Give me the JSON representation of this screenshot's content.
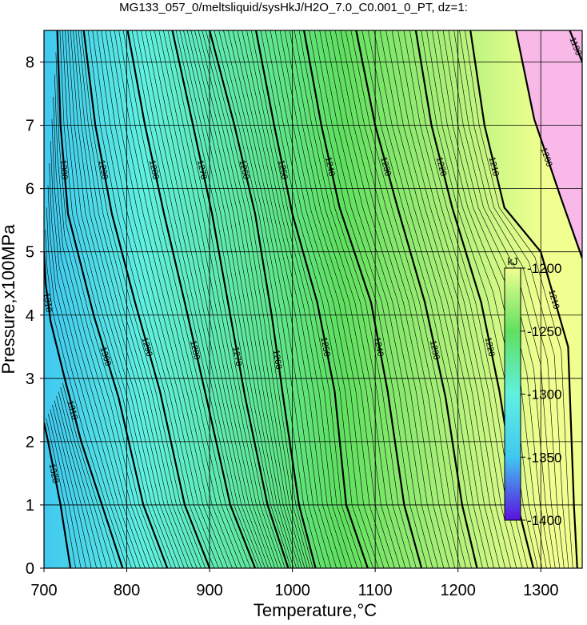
{
  "chart_data": {
    "type": "contour",
    "title": "MG133_057_0/meltsliquid/sysHkJ/H2O_7.0_C0.001_0_PT, dz=1:",
    "xlabel": "Temperature,°C",
    "ylabel": "Pressure,x100MPa",
    "xlim": [
      700,
      1350
    ],
    "ylim": [
      0,
      8.5
    ],
    "xticks": [
      700,
      800,
      900,
      1000,
      1100,
      1200,
      1300
    ],
    "yticks": [
      0,
      1,
      2,
      3,
      4,
      5,
      6,
      7,
      8
    ],
    "grid": true,
    "contours": [
      {
        "level": -1320,
        "label": "1320",
        "x": [
          732,
          720,
          705,
          700
        ],
        "y": [
          0,
          1,
          2,
          2.3
        ]
      },
      {
        "level": -1310,
        "label": "1310",
        "x": [
          795,
          770,
          745,
          725,
          708,
          702,
          700
        ],
        "y": [
          0,
          1,
          2,
          3,
          3.9,
          4.5,
          5
        ]
      },
      {
        "level": -1300,
        "label": "1300",
        "x": [
          849,
          820,
          790,
          760,
          729,
          720,
          716
        ],
        "y": [
          0,
          1,
          2.7,
          4,
          5.6,
          7,
          8.5
        ]
      },
      {
        "level": -1290,
        "label": "1290",
        "x": [
          900,
          870,
          840,
          810,
          782,
          762,
          748
        ],
        "y": [
          0,
          1,
          2.8,
          4.2,
          5.6,
          7,
          8.5
        ]
      },
      {
        "level": -1280,
        "label": "1280",
        "x": [
          955,
          925,
          896,
          870,
          845,
          822,
          801
        ],
        "y": [
          0,
          1,
          2.7,
          4.2,
          5.6,
          7,
          8.5
        ]
      },
      {
        "level": -1270,
        "label": "1270",
        "x": [
          995,
          970,
          943,
          925,
          903,
          880,
          855
        ],
        "y": [
          0,
          1,
          2.7,
          4,
          5.6,
          7,
          8.5
        ]
      },
      {
        "level": -1260,
        "label": "1260",
        "x": [
          1028,
          1008,
          990,
          975,
          955,
          930,
          900
        ],
        "y": [
          0,
          1,
          2.6,
          4,
          5.6,
          7,
          8.5
        ]
      },
      {
        "level": -1250,
        "label": "1250",
        "x": [
          1091,
          1065,
          1051,
          1030,
          1000,
          978,
          956
        ],
        "y": [
          0,
          1,
          2.8,
          4.2,
          5.6,
          7,
          8.5
        ]
      },
      {
        "level": -1240,
        "label": "1240",
        "x": [
          1156,
          1135,
          1115,
          1095,
          1057,
          1035,
          1014
        ],
        "y": [
          0,
          1,
          2.8,
          4.2,
          5.7,
          7,
          8.5
        ]
      },
      {
        "level": -1230,
        "label": "1230",
        "x": [
          1223,
          1205,
          1185,
          1160,
          1127,
          1100,
          1077
        ],
        "y": [
          0,
          1,
          2.7,
          4.2,
          5.7,
          7,
          8.5
        ]
      },
      {
        "level": -1220,
        "label": "1220",
        "x": [
          1291,
          1272,
          1250,
          1228,
          1193,
          1168,
          1149
        ],
        "y": [
          0,
          1,
          2.8,
          4.2,
          5.7,
          7,
          8.5
        ]
      },
      {
        "level": -1210,
        "label": "1210",
        "x": [
          1344,
          1340,
          1333,
          1300,
          1256,
          1232,
          1215
        ],
        "y": [
          0,
          1,
          3.5,
          5,
          5.7,
          7,
          8.5
        ]
      },
      {
        "level": -1200,
        "label": "1200",
        "x": [
          1350,
          1323,
          1292,
          1270
        ],
        "y": [
          4.9,
          5.9,
          7.1,
          8.5
        ]
      },
      {
        "level": -1190,
        "label": "1190",
        "x": [
          1350,
          1335
        ],
        "y": [
          8,
          8.5
        ]
      }
    ],
    "colorbar": {
      "label": "kJ",
      "lim": [
        -1400,
        -1200
      ],
      "ticks": [
        -1200,
        -1250,
        -1300,
        -1350,
        -1400
      ],
      "colorscale": [
        [
          -1400,
          "#5a10e0"
        ],
        [
          -1350,
          "#40c8f0"
        ],
        [
          -1300,
          "#60f0e0"
        ],
        [
          -1250,
          "#60e060"
        ],
        [
          -1200,
          "#f0ff90"
        ]
      ],
      "above_color": "#f8b8e8"
    }
  }
}
